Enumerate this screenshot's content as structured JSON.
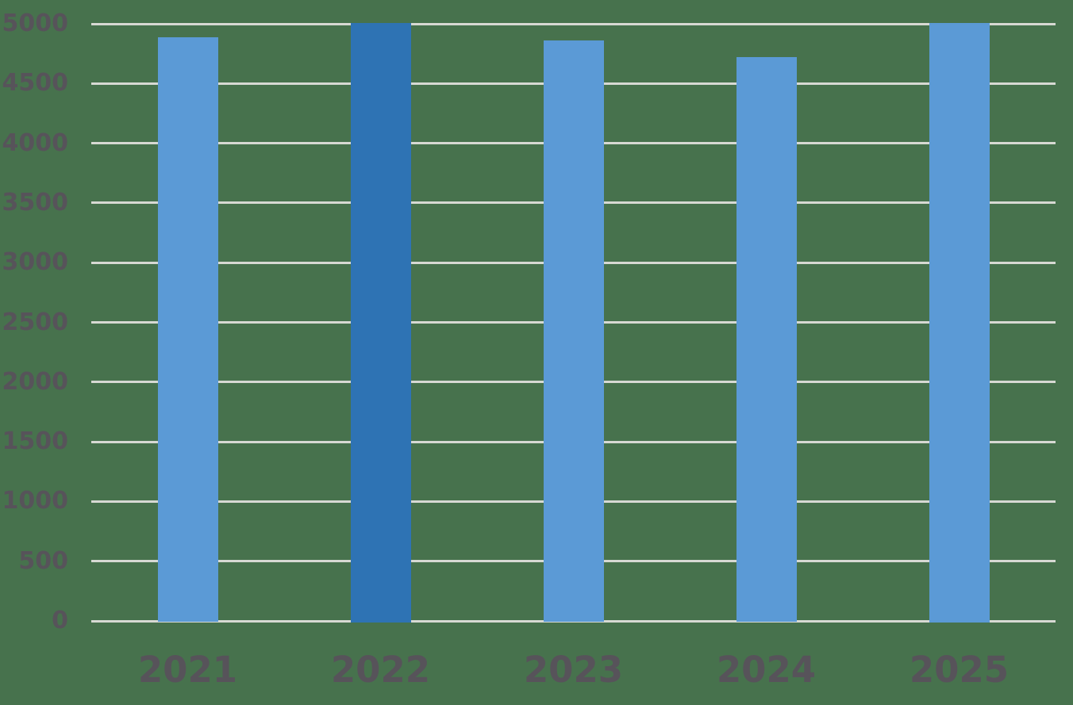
{
  "chart_data": {
    "type": "bar",
    "title": "",
    "xlabel": "",
    "ylabel": "",
    "categories": [
      "2021",
      "2022",
      "2023",
      "2024",
      "2025"
    ],
    "values": [
      4880,
      5000,
      4850,
      4710,
      5000
    ],
    "highlight_index": 1,
    "ylim": [
      0,
      5000
    ],
    "ytick_step": 500,
    "ytick_labels": [
      "0",
      "500",
      "1000",
      "1500",
      "2000",
      "2500",
      "3000",
      "3500",
      "4000",
      "4500",
      "5000"
    ],
    "grid": "horizontal",
    "legend": "none",
    "colors": {
      "background": "#47724d",
      "bar_default": "#5b9ad6",
      "bar_highlight": "#2e73b4",
      "gridline": "#d7d9d3",
      "tick_label": "#57535a"
    }
  }
}
